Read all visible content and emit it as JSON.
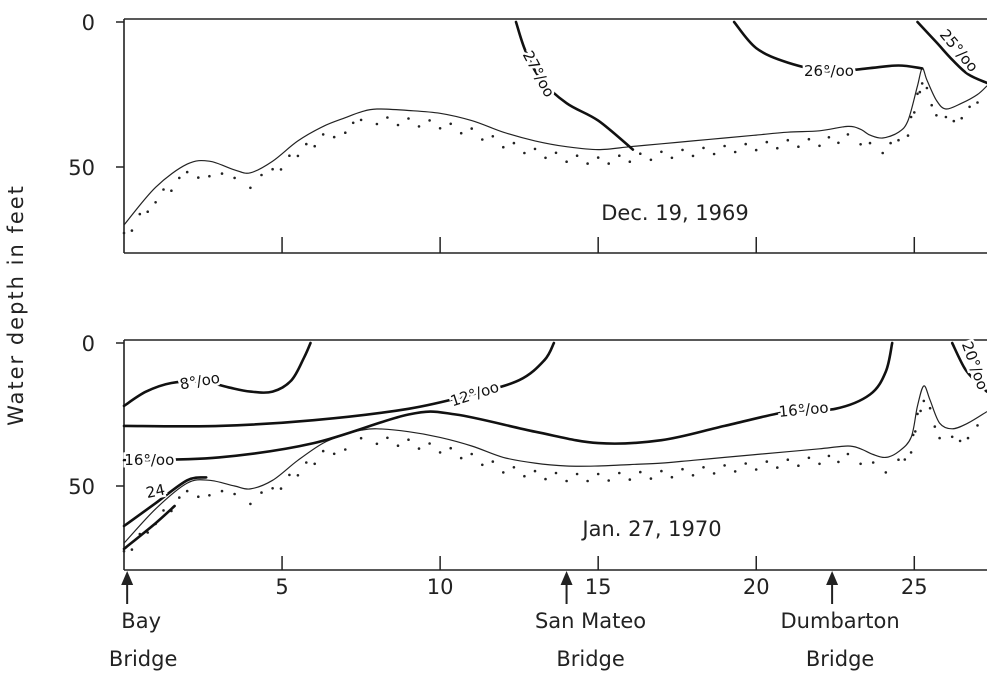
{
  "chart_data": {
    "type": "line",
    "ylabel": "Water depth in feet",
    "xticks": [
      5,
      10,
      15,
      20,
      25
    ],
    "yticks": [
      0,
      50
    ],
    "xlim": [
      0,
      27.3
    ],
    "ylim": [
      0,
      80
    ],
    "landmarks": [
      {
        "x": 0.1,
        "line1": "Bay",
        "line2": "Bridge"
      },
      {
        "x": 14,
        "line1": "San Mateo",
        "line2": "Bridge"
      },
      {
        "x": 22.4,
        "line1": "Dumbarton",
        "line2": "Bridge"
      }
    ],
    "panels": [
      {
        "date": "Dec. 19, 1969",
        "bottom_profile": [
          [
            0,
            70
          ],
          [
            1,
            57
          ],
          [
            2,
            49
          ],
          [
            2.7,
            48
          ],
          [
            3.5,
            51
          ],
          [
            4,
            52
          ],
          [
            4.7,
            48
          ],
          [
            5.5,
            41
          ],
          [
            6.3,
            36
          ],
          [
            7,
            33
          ],
          [
            7.5,
            31
          ],
          [
            8,
            30
          ],
          [
            9,
            30.5
          ],
          [
            10,
            31.5
          ],
          [
            11,
            34
          ],
          [
            12,
            38
          ],
          [
            13,
            41
          ],
          [
            14,
            43
          ],
          [
            15,
            44
          ],
          [
            16,
            43
          ],
          [
            17,
            42
          ],
          [
            18,
            41
          ],
          [
            19,
            40
          ],
          [
            20,
            39
          ],
          [
            21,
            38
          ],
          [
            22,
            37.5
          ],
          [
            22.9,
            36
          ],
          [
            23.3,
            37
          ],
          [
            23.6,
            39
          ],
          [
            24,
            40
          ],
          [
            24.5,
            38
          ],
          [
            24.8,
            34
          ],
          [
            25.1,
            22
          ],
          [
            25.25,
            16
          ],
          [
            25.4,
            20
          ],
          [
            25.7,
            27
          ],
          [
            26,
            30
          ],
          [
            26.5,
            28
          ],
          [
            27,
            25
          ],
          [
            27.3,
            22
          ]
        ],
        "isohalines": [
          {
            "label": "27°/oo",
            "points": [
              [
                12.4,
                0
              ],
              [
                12.7,
                10
              ],
              [
                13.2,
                20
              ],
              [
                14,
                28
              ],
              [
                15,
                34
              ],
              [
                16.1,
                44
              ]
            ]
          },
          {
            "label": "26°/oo",
            "points": [
              [
                19.3,
                0
              ],
              [
                20,
                9
              ],
              [
                21,
                14
              ],
              [
                22.3,
                17
              ],
              [
                23.5,
                16
              ],
              [
                24.5,
                15
              ],
              [
                25.25,
                16
              ]
            ]
          },
          {
            "label": "25°/oo",
            "points": [
              [
                25.1,
                0
              ],
              [
                25.7,
                7
              ],
              [
                26.2,
                13
              ],
              [
                26.7,
                18
              ],
              [
                27.3,
                21
              ]
            ]
          }
        ]
      },
      {
        "date": "Jan. 27, 1970",
        "bottom_profile": [
          [
            0,
            70
          ],
          [
            1,
            58
          ],
          [
            2,
            49
          ],
          [
            2.7,
            48
          ],
          [
            3.5,
            50
          ],
          [
            4,
            51
          ],
          [
            4.7,
            48
          ],
          [
            5.5,
            41
          ],
          [
            6.3,
            35
          ],
          [
            7,
            32
          ],
          [
            7.5,
            30.5
          ],
          [
            8,
            30
          ],
          [
            9,
            31
          ],
          [
            10,
            33
          ],
          [
            11,
            36
          ],
          [
            12,
            40
          ],
          [
            13,
            42
          ],
          [
            14,
            43
          ],
          [
            15,
            43
          ],
          [
            16,
            42.5
          ],
          [
            17,
            42
          ],
          [
            18,
            41
          ],
          [
            19,
            40
          ],
          [
            20,
            39
          ],
          [
            21,
            38
          ],
          [
            22,
            37
          ],
          [
            22.9,
            36
          ],
          [
            23.3,
            37
          ],
          [
            23.7,
            39
          ],
          [
            24.1,
            40
          ],
          [
            24.5,
            38
          ],
          [
            24.9,
            33
          ],
          [
            25.1,
            22
          ],
          [
            25.3,
            15
          ],
          [
            25.5,
            20
          ],
          [
            25.8,
            28
          ],
          [
            26.2,
            30
          ],
          [
            26.7,
            28
          ],
          [
            27.3,
            24
          ]
        ],
        "isohalines": [
          {
            "label": "8°/oo",
            "points": [
              [
                0,
                22
              ],
              [
                0.7,
                17
              ],
              [
                1.5,
                14
              ],
              [
                2.5,
                13.5
              ],
              [
                3.3,
                15.5
              ],
              [
                4,
                17
              ],
              [
                4.7,
                17
              ],
              [
                5.3,
                13
              ],
              [
                5.7,
                5
              ],
              [
                5.9,
                0
              ]
            ]
          },
          {
            "label": "12°/oo",
            "points": [
              [
                0,
                29
              ],
              [
                3,
                29
              ],
              [
                6,
                27
              ],
              [
                9,
                23
              ],
              [
                11,
                18
              ],
              [
                12.5,
                13
              ],
              [
                13.3,
                6
              ],
              [
                13.6,
                0
              ]
            ]
          },
          {
            "label": "16°/oo",
            "points": [
              [
                0,
                41
              ],
              [
                3,
                40
              ],
              [
                6,
                35
              ],
              [
                9,
                25
              ],
              [
                10.5,
                25
              ],
              [
                13,
                31
              ],
              [
                15,
                35
              ],
              [
                17,
                34
              ],
              [
                19,
                29
              ],
              [
                21,
                24
              ],
              [
                22.5,
                23
              ],
              [
                23.6,
                18
              ],
              [
                24.1,
                10
              ],
              [
                24.3,
                0
              ]
            ]
          },
          {
            "label": "16°/oo",
            "points": [
              [
                26.2,
                0
              ],
              [
                26.6,
                9
              ],
              [
                27,
                14
              ],
              [
                27.3,
                17
              ]
            ]
          },
          {
            "label": "20°/oo",
            "points": [
              [
                0,
                64
              ],
              [
                1,
                56
              ],
              [
                2,
                48
              ],
              [
                2.6,
                47
              ]
            ]
          },
          {
            "label": "24",
            "points": [
              [
                0,
                72
              ],
              [
                1,
                63
              ],
              [
                1.6,
                57
              ]
            ]
          }
        ]
      }
    ]
  }
}
